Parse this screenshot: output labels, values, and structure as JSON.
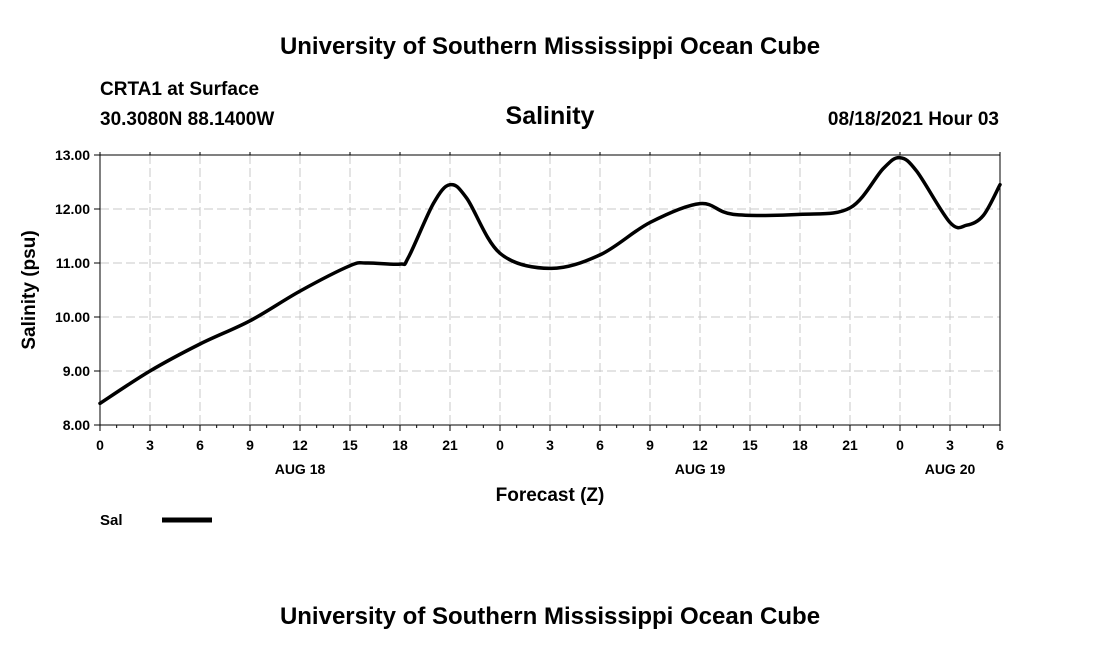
{
  "header_top": "University of Southern Mississippi Ocean Cube",
  "header_bottom": "University of Southern Mississippi Ocean Cube",
  "station": "CRTA1 at Surface",
  "coords": "30.3080N  88.1400W",
  "timestamp": "08/18/2021 Hour 03",
  "chart_data": {
    "type": "line",
    "title": "Salinity",
    "xlabel": "Forecast (Z)",
    "ylabel": "Salinity (psu)",
    "ylim": [
      8.0,
      13.0
    ],
    "xlim": [
      0,
      54
    ],
    "yticks": [
      "8.00",
      "9.00",
      "10.00",
      "11.00",
      "12.00",
      "13.00"
    ],
    "xticks": [
      "0",
      "3",
      "6",
      "9",
      "12",
      "15",
      "18",
      "21",
      "0",
      "3",
      "6",
      "9",
      "12",
      "15",
      "18",
      "21",
      "0",
      "3",
      "6"
    ],
    "date_labels": [
      {
        "label": "AUG 18",
        "hour": 12
      },
      {
        "label": "AUG 19",
        "hour": 36
      },
      {
        "label": "AUG 20",
        "hour": 51
      }
    ],
    "grid": true,
    "legend": {
      "position": "bottom-left",
      "entries": [
        "Sal"
      ]
    },
    "series": [
      {
        "name": "Sal",
        "color": "#000000",
        "x": [
          0,
          3,
          6,
          9,
          12,
          15,
          16,
          18,
          18.5,
          20,
          21,
          22,
          24,
          27,
          30,
          33,
          36,
          38,
          42,
          45,
          47,
          48,
          49,
          51,
          52,
          53,
          54
        ],
        "y": [
          8.4,
          9.0,
          9.5,
          9.93,
          10.48,
          10.95,
          11.0,
          10.98,
          11.1,
          12.1,
          12.45,
          12.2,
          11.18,
          10.9,
          11.15,
          11.75,
          12.1,
          11.9,
          11.9,
          12.02,
          12.75,
          12.95,
          12.7,
          11.75,
          11.7,
          11.88,
          12.45
        ]
      }
    ]
  }
}
